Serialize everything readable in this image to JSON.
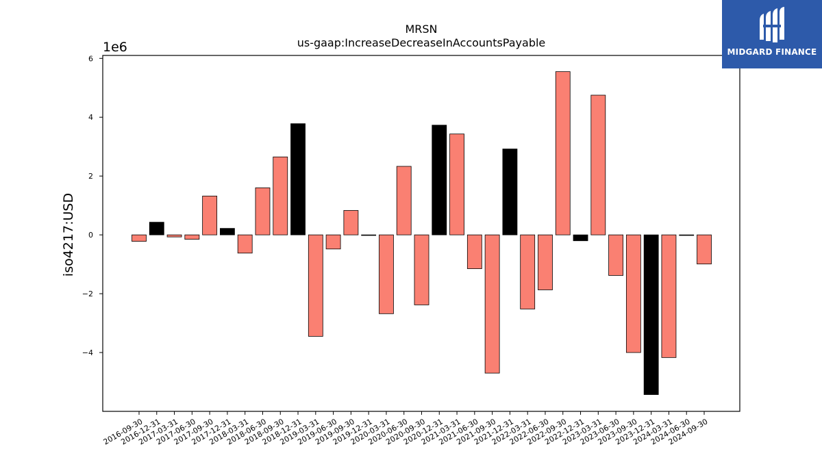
{
  "chart_data": {
    "type": "bar",
    "title": "MRSN",
    "subtitle": "us-gaap:IncreaseDecreaseInAccountsPayable",
    "ylabel": "iso4217:USD",
    "xlabel": "",
    "offset_text": "1e6",
    "ylim": [
      -6000000,
      6100000
    ],
    "yticks": [
      6000000,
      4000000,
      2000000,
      0,
      -2000000,
      -4000000
    ],
    "ytick_labels": [
      "6",
      "4",
      "2",
      "0",
      "−2",
      "−4"
    ],
    "grid": false,
    "legend": "none",
    "categories": [
      "2016-09-30",
      "2016-12-31",
      "2017-03-31",
      "2017-06-30",
      "2017-09-30",
      "2017-12-31",
      "2018-03-31",
      "2018-06-30",
      "2018-09-30",
      "2018-12-31",
      "2019-03-31",
      "2019-06-30",
      "2019-09-30",
      "2019-12-31",
      "2020-03-31",
      "2020-06-30",
      "2020-09-30",
      "2020-12-31",
      "2021-03-31",
      "2021-06-30",
      "2021-09-30",
      "2021-12-31",
      "2022-03-31",
      "2022-06-30",
      "2022-09-30",
      "2022-12-31",
      "2023-03-31",
      "2023-06-30",
      "2023-09-30",
      "2023-12-31",
      "2024-03-31",
      "2024-06-30",
      "2024-09-30"
    ],
    "values": [
      -220000,
      430000,
      -70000,
      -150000,
      1320000,
      220000,
      -620000,
      1600000,
      2650000,
      3780000,
      -3450000,
      -480000,
      830000,
      -20000,
      -2680000,
      2330000,
      -2380000,
      3730000,
      3430000,
      -1150000,
      -4700000,
      2920000,
      -2520000,
      -1870000,
      5550000,
      -200000,
      4750000,
      -1380000,
      -4000000,
      -5430000,
      -4170000,
      -20000,
      -990000
    ],
    "bar_colors": [
      "#fa8072",
      "#000000",
      "#fa8072",
      "#fa8072",
      "#fa8072",
      "#000000",
      "#fa8072",
      "#fa8072",
      "#fa8072",
      "#000000",
      "#fa8072",
      "#fa8072",
      "#fa8072",
      "#000000",
      "#fa8072",
      "#fa8072",
      "#fa8072",
      "#000000",
      "#fa8072",
      "#fa8072",
      "#fa8072",
      "#000000",
      "#fa8072",
      "#fa8072",
      "#fa8072",
      "#000000",
      "#fa8072",
      "#fa8072",
      "#fa8072",
      "#000000",
      "#fa8072",
      "#000000",
      "#fa8072"
    ]
  },
  "logo": {
    "text": "MIDGARD FINANCE",
    "icon": "midgard-finance-logo-icon",
    "background": "#2d5aaa"
  }
}
